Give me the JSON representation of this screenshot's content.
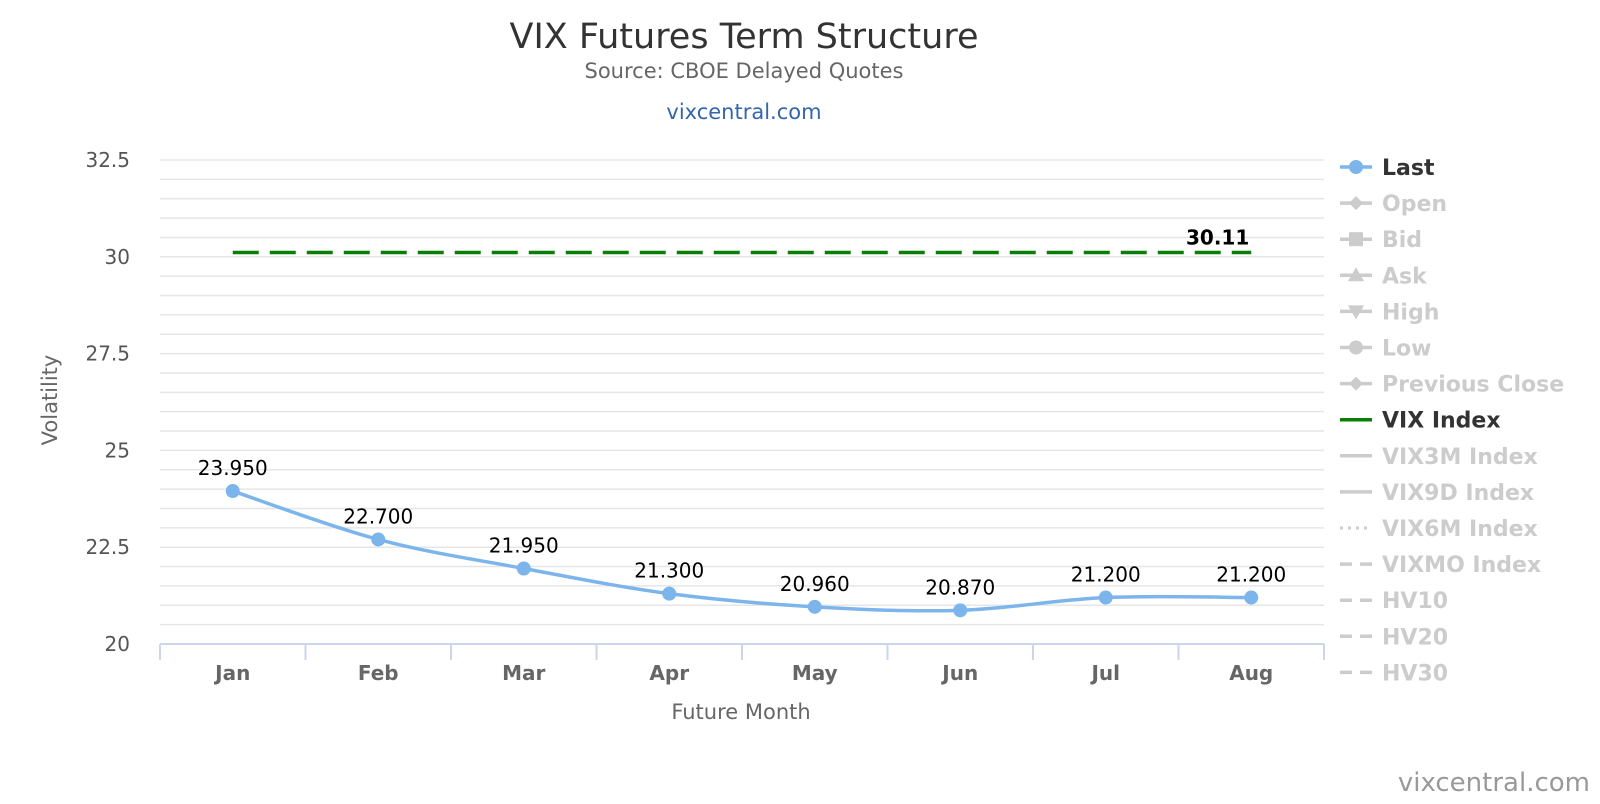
{
  "colors": {
    "last": "#7cb5ec",
    "vix": "#0a7e07",
    "inactive": "#cccccc",
    "active_text": "#333333",
    "grid": "#e6e6e6",
    "axis": "#ccd6eb"
  },
  "chart_data": {
    "type": "line",
    "title": "VIX Futures Term Structure",
    "subtitle": "Source: CBOE Delayed Quotes",
    "link": "vixcentral.com",
    "credit": "vixcentral.com",
    "xlabel": "Future Month",
    "ylabel": "Volatility",
    "ylim": [
      20,
      32.5
    ],
    "yticks": [
      20,
      22.5,
      25,
      27.5,
      30,
      32.5
    ],
    "ytick_labels": [
      "20",
      "22.5",
      "25",
      "27.5",
      "30",
      "32.5"
    ],
    "minor_step": 0.5,
    "grid": true,
    "legend_position": "right",
    "categories": [
      "Jan",
      "Feb",
      "Mar",
      "Apr",
      "May",
      "Jun",
      "Jul",
      "Aug"
    ],
    "series": [
      {
        "name": "Last",
        "values": [
          23.95,
          22.7,
          21.95,
          21.3,
          20.96,
          20.87,
          21.2,
          21.2
        ],
        "labels": [
          "23.950",
          "22.700",
          "21.950",
          "21.300",
          "20.960",
          "20.870",
          "21.200",
          "21.200"
        ]
      },
      {
        "name": "VIX Index",
        "values": [
          30.11,
          30.11,
          30.11,
          30.11,
          30.11,
          30.11,
          30.11,
          30.11
        ],
        "end_label": "30.11"
      }
    ],
    "legend": [
      {
        "name": "Last",
        "symbol": "circle",
        "active": true,
        "color_key": "last"
      },
      {
        "name": "Open",
        "symbol": "diamond",
        "active": false
      },
      {
        "name": "Bid",
        "symbol": "square",
        "active": false
      },
      {
        "name": "Ask",
        "symbol": "triangle",
        "active": false
      },
      {
        "name": "High",
        "symbol": "triangle-down",
        "active": false
      },
      {
        "name": "Low",
        "symbol": "circle",
        "active": false
      },
      {
        "name": "Previous Close",
        "symbol": "diamond",
        "active": false
      },
      {
        "name": "VIX Index",
        "symbol": "line",
        "active": true,
        "color_key": "vix"
      },
      {
        "name": "VIX3M Index",
        "symbol": "line",
        "active": false
      },
      {
        "name": "VIX9D Index",
        "symbol": "line",
        "active": false
      },
      {
        "name": "VIX6M Index",
        "symbol": "dotted",
        "active": false
      },
      {
        "name": "VIXMO Index",
        "symbol": "dashed",
        "active": false
      },
      {
        "name": "HV10",
        "symbol": "dashed",
        "active": false
      },
      {
        "name": "HV20",
        "symbol": "dashed",
        "active": false
      },
      {
        "name": "HV30",
        "symbol": "dashed",
        "active": false
      }
    ]
  }
}
